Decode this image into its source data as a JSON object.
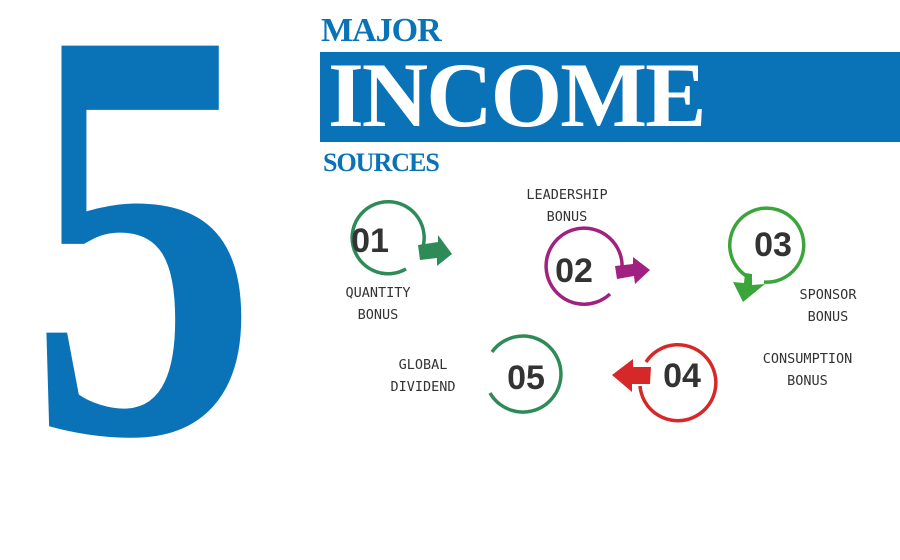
{
  "headline": {
    "number": "5",
    "major": "MAJOR",
    "income": "INCOME",
    "sources": "SOURCES"
  },
  "sources": [
    {
      "num": "01",
      "line1": "QUANTITY",
      "line2": "BONUS",
      "color": "#2e8b57"
    },
    {
      "num": "02",
      "line1": "LEADERSHIP",
      "line2": "BONUS",
      "color": "#a0217f"
    },
    {
      "num": "03",
      "line1": "SPONSOR",
      "line2": "BONUS",
      "color": "#3aa53a"
    },
    {
      "num": "04",
      "line1": "CONSUMPTION",
      "line2": "BONUS",
      "color": "#d62828"
    },
    {
      "num": "05",
      "line1": "GLOBAL",
      "line2": "DIVIDEND",
      "color": "#2e8b57"
    }
  ],
  "colors": {
    "brand_blue": "#0a73b8"
  }
}
